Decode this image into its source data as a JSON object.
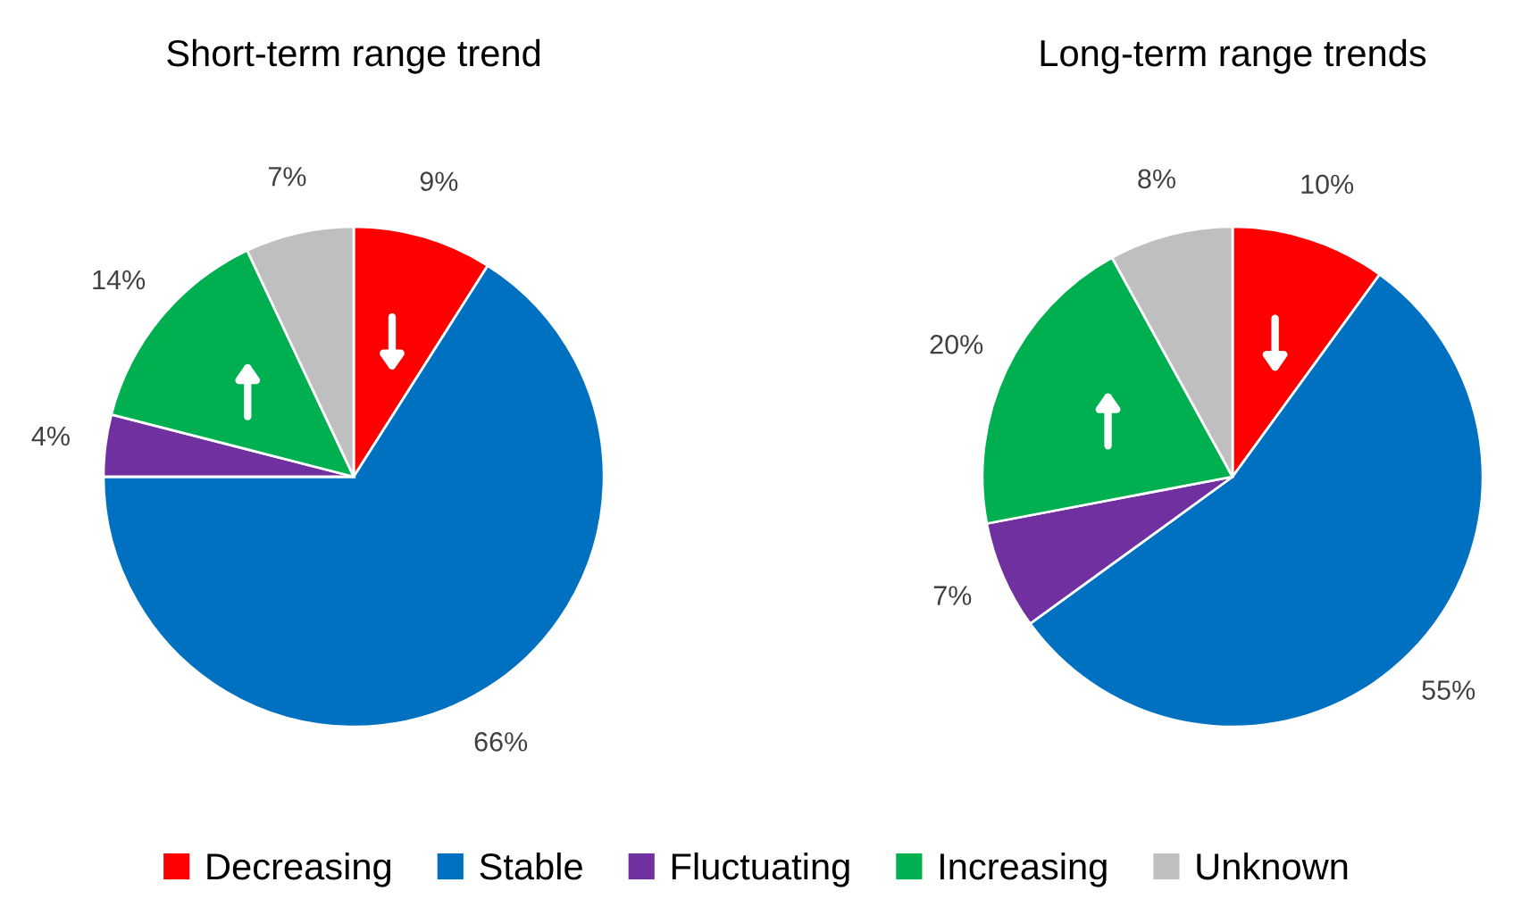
{
  "chart_data": [
    {
      "type": "pie",
      "title": "Short-term range trend",
      "categories": [
        "Decreasing",
        "Stable",
        "Fluctuating",
        "Increasing",
        "Unknown"
      ],
      "values": [
        9,
        66,
        4,
        14,
        7
      ],
      "value_labels": [
        "9%",
        "66%",
        "4%",
        "14%",
        "7%"
      ],
      "colors": [
        "#ff0000",
        "#0070c0",
        "#7030a0",
        "#00b050",
        "#bfbfbf"
      ],
      "legend": "bottom"
    },
    {
      "type": "pie",
      "title": "Long-term range trends",
      "categories": [
        null,
        null,
        null,
        null,
        null
      ],
      "values": [
        10,
        55,
        7,
        20,
        8
      ],
      "value_labels": [
        "10%",
        "55%",
        "7%",
        "20%",
        "8%"
      ],
      "colors": [
        "#ff0000",
        "#0070c0",
        "#7030a0",
        "#00b050",
        "#bfbfbf"
      ]
    }
  ]
}
